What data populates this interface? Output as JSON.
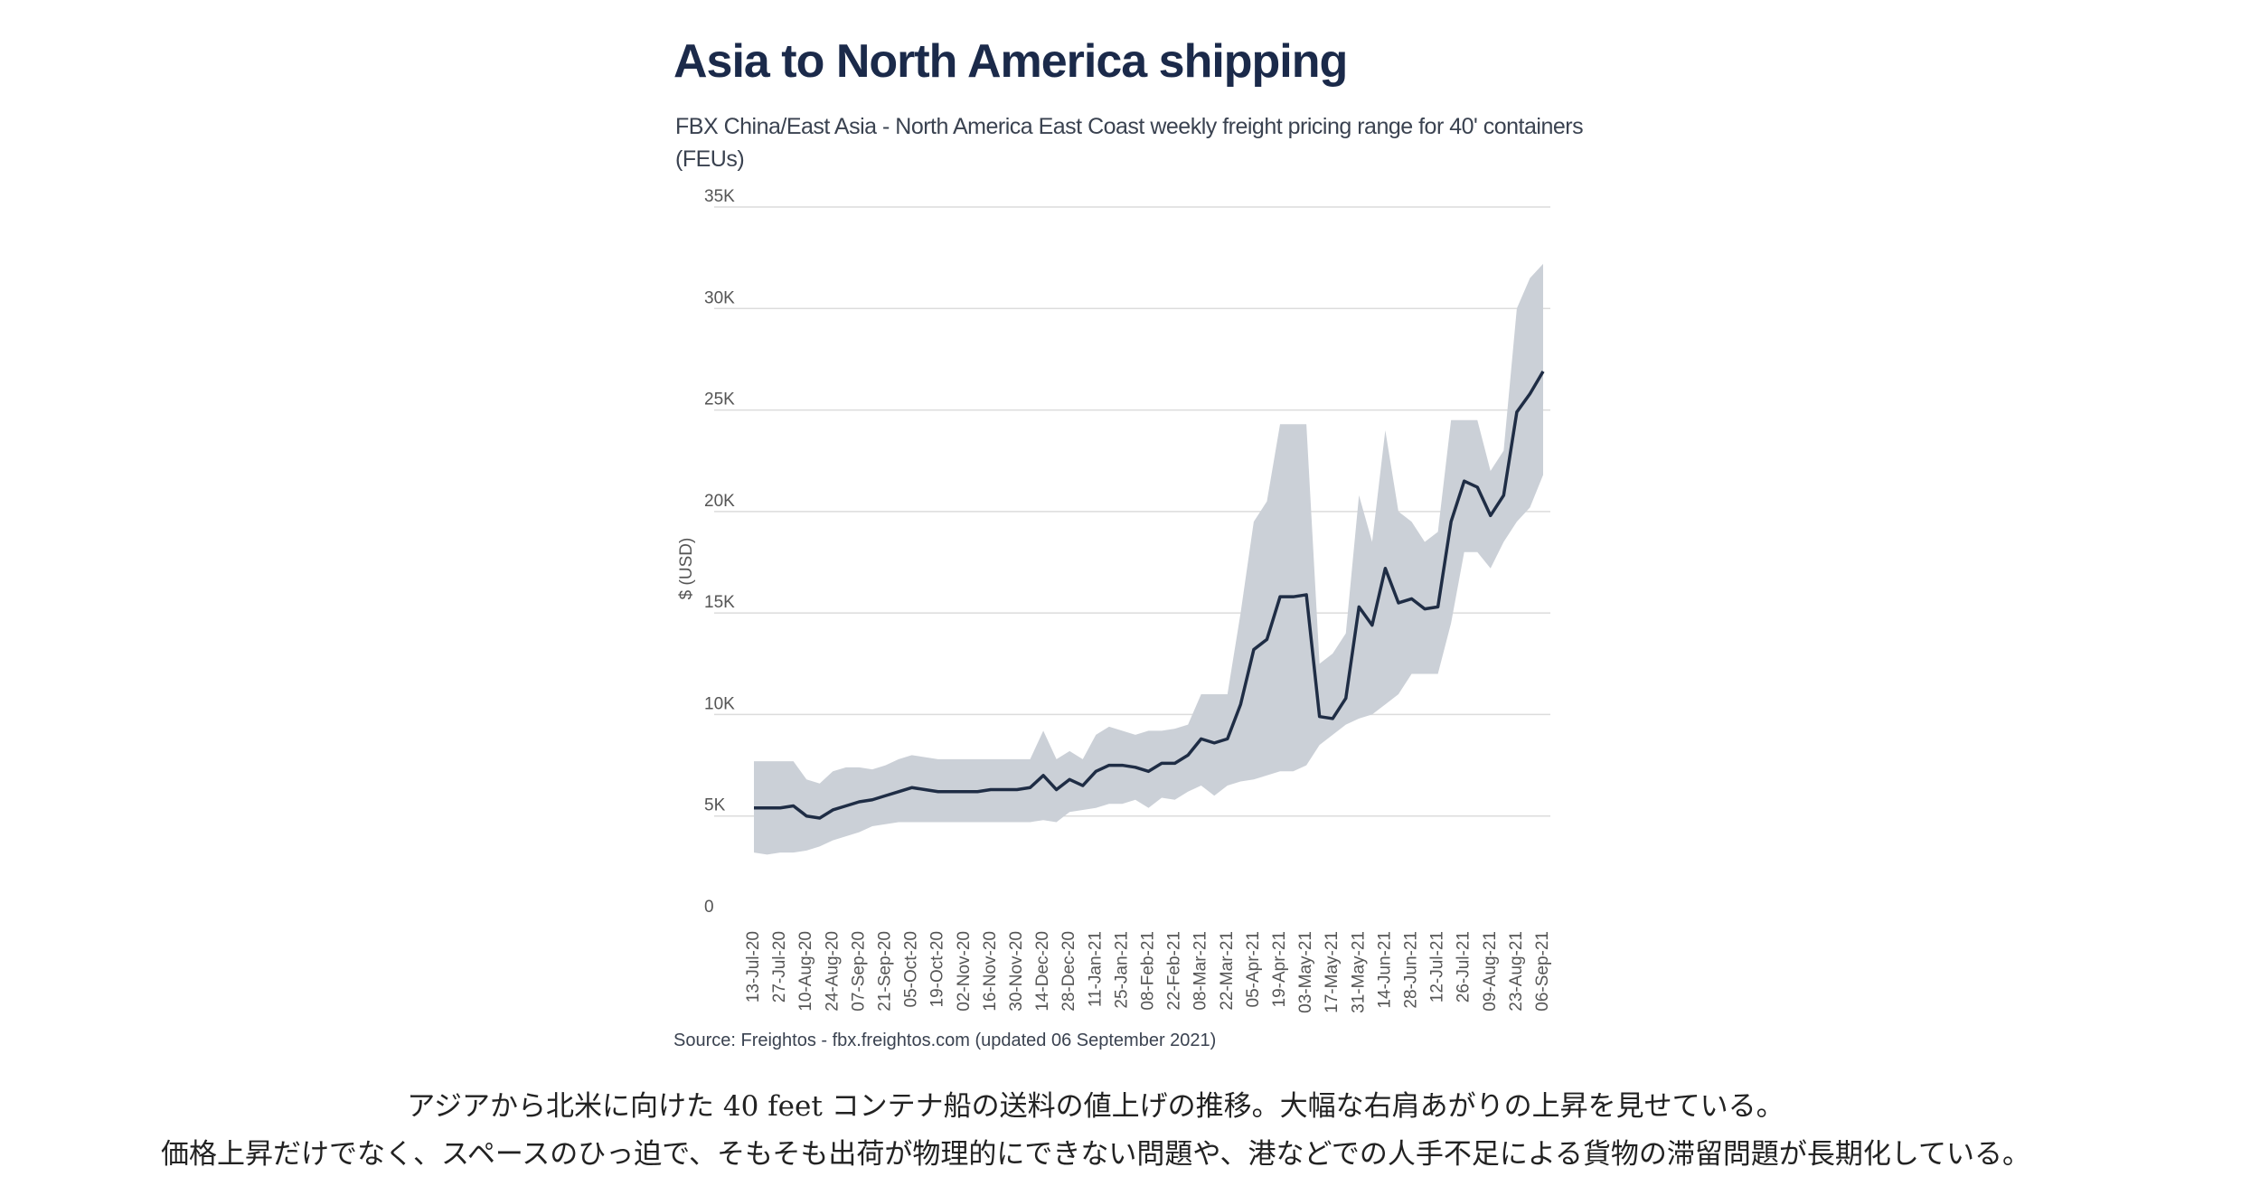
{
  "chart_data": {
    "type": "line",
    "title": "Asia to North America shipping",
    "subtitle": "FBX China/East Asia - North America East Coast weekly freight pricing range for 40' containers (FEUs)",
    "y_label": "$ (USD)",
    "source": "Source: Freightos - fbx.freightos.com (updated 06 September 2021)",
    "caption": [
      "アジアから北米に向けた 40 feet コンテナ船の送料の値上げの推移。大幅な右肩あがりの上昇を見せている。",
      "価格上昇だけでなく、スペースのひっ迫で、そもそも出荷が物理的にできない問題や、港などでの人手不足による貨物の滞留問題が長期化している。"
    ],
    "categories": [
      "13-Jul-20",
      null,
      "27-Jul-20",
      null,
      "10-Aug-20",
      null,
      "24-Aug-20",
      null,
      "07-Sep-20",
      null,
      "21-Sep-20",
      null,
      "05-Oct-20",
      null,
      "19-Oct-20",
      null,
      "02-Nov-20",
      null,
      "16-Nov-20",
      null,
      "30-Nov-20",
      null,
      "14-Dec-20",
      null,
      "28-Dec-20",
      null,
      "11-Jan-21",
      null,
      "25-Jan-21",
      null,
      "08-Feb-21",
      null,
      "22-Feb-21",
      null,
      "08-Mar-21",
      null,
      "22-Mar-21",
      null,
      "05-Apr-21",
      null,
      "19-Apr-21",
      null,
      "03-May-21",
      null,
      "17-May-21",
      null,
      "31-May-21",
      null,
      "14-Jun-21",
      null,
      "28-Jun-21",
      null,
      "12-Jul-21",
      null,
      "26-Jul-21",
      null,
      "09-Aug-21",
      null,
      "23-Aug-21",
      null,
      "06-Sep-21"
    ],
    "series": [
      {
        "color": "#1f2d45",
        "values": [
          5400,
          5400,
          5400,
          5500,
          5000,
          4900,
          5300,
          5500,
          5700,
          5800,
          6000,
          6200,
          6400,
          6300,
          6200,
          6200,
          6200,
          6200,
          6300,
          6300,
          6300,
          6400,
          7000,
          6300,
          6800,
          6500,
          7200,
          7500,
          7500,
          7400,
          7200,
          7600,
          7600,
          8000,
          8800,
          8600,
          8800,
          10500,
          13200,
          13700,
          15800,
          15800,
          15900,
          9900,
          9800,
          10800,
          15300,
          14400,
          17200,
          15500,
          15700,
          15200,
          15300,
          19500,
          21500,
          21200,
          19800,
          20800,
          24900,
          25800,
          26900
        ]
      }
    ],
    "band": {
      "color": "#cbd0d7",
      "high": [
        7700,
        7700,
        7700,
        7700,
        6800,
        6600,
        7200,
        7400,
        7400,
        7300,
        7500,
        7800,
        8000,
        7900,
        7800,
        7800,
        7800,
        7800,
        7800,
        7800,
        7800,
        7800,
        9200,
        7800,
        8200,
        7800,
        9000,
        9400,
        9200,
        9000,
        9200,
        9200,
        9300,
        9500,
        11000,
        11000,
        11000,
        15000,
        19500,
        20500,
        24300,
        24300,
        24300,
        12500,
        13000,
        14000,
        20800,
        18500,
        24000,
        20000,
        19500,
        18500,
        19000,
        24500,
        24500,
        24500,
        22000,
        23000,
        30000,
        31500,
        32200
      ],
      "low": [
        3200,
        3100,
        3200,
        3200,
        3300,
        3500,
        3800,
        4000,
        4200,
        4500,
        4600,
        4700,
        4700,
        4700,
        4700,
        4700,
        4700,
        4700,
        4700,
        4700,
        4700,
        4700,
        4800,
        4700,
        5200,
        5300,
        5400,
        5600,
        5600,
        5800,
        5400,
        5900,
        5800,
        6200,
        6500,
        6000,
        6500,
        6700,
        6800,
        7000,
        7200,
        7200,
        7500,
        8500,
        9000,
        9500,
        9800,
        10000,
        10500,
        11000,
        12000,
        12000,
        12000,
        14500,
        18000,
        18000,
        17200,
        18500,
        19500,
        20200,
        21800
      ]
    },
    "ylim": [
      0,
      35000
    ],
    "yticks": [
      0,
      {
        "value": 5000,
        "label": "5K"
      },
      {
        "value": 10000,
        "label": "10K"
      },
      {
        "value": 15000,
        "label": "15K"
      },
      {
        "value": 20000,
        "label": "20K"
      },
      {
        "value": 25000,
        "label": "25K"
      },
      {
        "value": 30000,
        "label": "30K"
      },
      {
        "value": 35000,
        "label": "35K"
      }
    ],
    "grid": true
  }
}
